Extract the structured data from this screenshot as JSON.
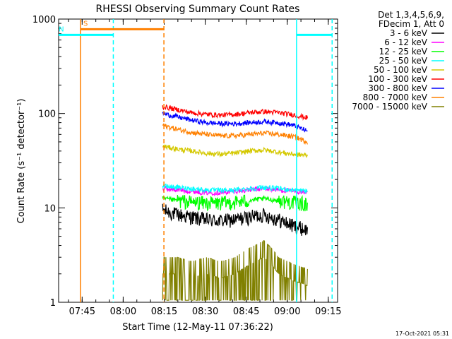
{
  "chart_data": {
    "type": "line",
    "title": "RHESSI Observing Summary Count Rates",
    "xlabel": "Start Time (12-May-11 07:36:22)",
    "ylabel": "Count Rate (s⁻¹ detector⁻¹)",
    "yscale": "log",
    "ylim": [
      1,
      1000
    ],
    "xlim_minutes": [
      0,
      102
    ],
    "x_unit": "minutes after 07:36:22",
    "xticks": [
      {
        "label": "07:45",
        "value": 8.6
      },
      {
        "label": "08:00",
        "value": 23.6
      },
      {
        "label": "08:15",
        "value": 38.6
      },
      {
        "label": "08:30",
        "value": 53.6
      },
      {
        "label": "08:45",
        "value": 68.6
      },
      {
        "label": "09:00",
        "value": 83.6
      },
      {
        "label": "09:15",
        "value": 98.6
      }
    ],
    "yticks": [
      {
        "label": "1",
        "value": 1
      },
      {
        "label": "10",
        "value": 10
      },
      {
        "label": "100",
        "value": 100
      },
      {
        "label": "1000",
        "value": 1000
      }
    ],
    "legend_header": [
      "Det 1,3,4,5,6,9,",
      "FDecim 1, Att 0"
    ],
    "legend_position": "right",
    "series": [
      {
        "name": "3 - 6 keV",
        "color": "#000000",
        "start": 38,
        "end": 91,
        "values": [
          9.5,
          8.5,
          8,
          7.5,
          7.3,
          7.5,
          8,
          8.5,
          7.5,
          6.5,
          5.8
        ]
      },
      {
        "name": "6 - 12 keV",
        "color": "#ff00ff",
        "start": 38,
        "end": 91,
        "values": [
          16,
          15.5,
          15,
          14.5,
          14.5,
          15,
          15.5,
          16,
          15.5,
          15,
          14.5
        ]
      },
      {
        "name": "12 - 25 keV",
        "color": "#00ff00",
        "start": 38,
        "end": 91,
        "values": [
          12.5,
          12,
          11.5,
          11.3,
          11.3,
          11.5,
          12,
          12.5,
          12,
          11.5,
          11
        ]
      },
      {
        "name": "25 - 50 keV",
        "color": "#00ffff",
        "start": 38,
        "end": 91,
        "values": [
          17,
          16.5,
          16,
          15.5,
          15.3,
          15.5,
          16,
          16.5,
          16,
          15.5,
          15
        ]
      },
      {
        "name": "50 - 100 keV",
        "color": "#d4c800",
        "start": 38,
        "end": 91,
        "values": [
          45,
          42,
          40,
          38,
          37,
          38,
          40,
          41,
          39,
          37,
          36
        ]
      },
      {
        "name": "100 - 300 keV",
        "color": "#ff0000",
        "start": 38,
        "end": 91,
        "values": [
          118,
          110,
          102,
          98,
          96,
          98,
          102,
          105,
          102,
          97,
          90
        ]
      },
      {
        "name": "300 - 800 keV",
        "color": "#0000ff",
        "start": 38,
        "end": 91,
        "values": [
          100,
          92,
          85,
          80,
          78,
          78,
          80,
          82,
          80,
          75,
          65
        ]
      },
      {
        "name": "800 - 7000 keV",
        "color": "#ff8000",
        "start": 38,
        "end": 91,
        "values": [
          75,
          68,
          63,
          60,
          58,
          58,
          60,
          62,
          60,
          57,
          50
        ]
      },
      {
        "name": "7000 - 15000 keV",
        "color": "#808000",
        "start": 38,
        "end": 91,
        "values": [
          2,
          2,
          1.8,
          2,
          1.8,
          2,
          2.5,
          3,
          2,
          1.7,
          1.5
        ]
      }
    ],
    "annotations": [
      {
        "label": "S",
        "color": "#ff8000",
        "start": 8,
        "end": 38.5,
        "level": 780
      },
      {
        "label": "N",
        "color": "#00ffff",
        "start": -1,
        "end": 20,
        "level": 680
      },
      {
        "label": "",
        "color": "#00ffff",
        "start": 87,
        "end": 100,
        "level": 680
      }
    ],
    "markers": [
      {
        "color": "#ff8000",
        "style": "solid",
        "at": 8
      },
      {
        "color": "#00ffff",
        "style": "dashed",
        "at": 20
      },
      {
        "color": "#ff8000",
        "style": "dashed",
        "at": 38.5
      },
      {
        "color": "#00ffff",
        "style": "solid",
        "at": 87
      },
      {
        "color": "#00ffff",
        "style": "dashed",
        "at": 100
      }
    ]
  },
  "footer": {
    "timestamp": "17-Oct-2021 05:31"
  }
}
